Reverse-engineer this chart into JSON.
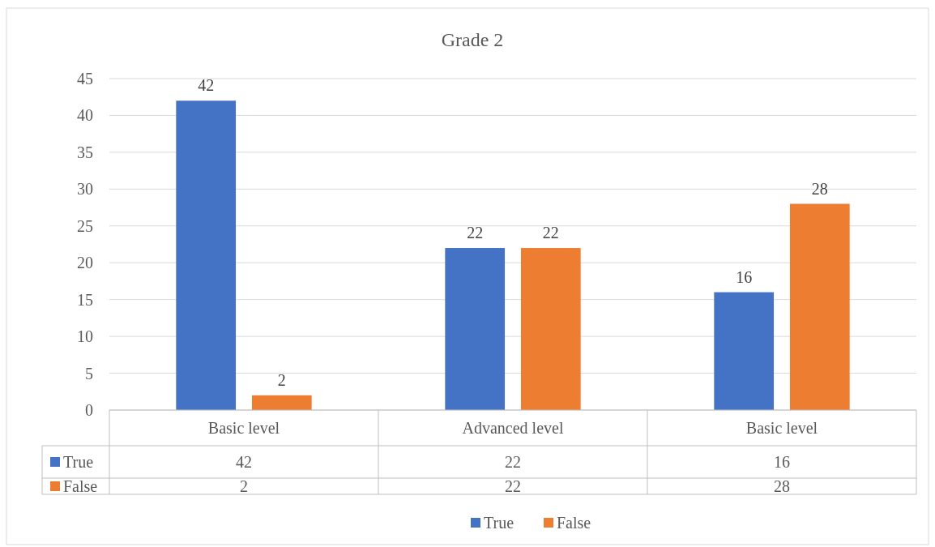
{
  "chart_data": {
    "type": "bar",
    "title": "Grade 2",
    "categories": [
      "Basic level",
      "Advanced level",
      "Basic level"
    ],
    "series": [
      {
        "name": "True",
        "color": "#4472c4",
        "values": [
          42,
          22,
          16
        ],
        "value_labels": [
          "42",
          "22",
          "16"
        ]
      },
      {
        "name": "False",
        "color": "#ed7d31",
        "values": [
          2,
          22,
          28
        ],
        "value_labels": [
          "2",
          "22",
          "28"
        ]
      }
    ],
    "ylim": [
      0,
      45
    ],
    "yticks": [
      0,
      5,
      10,
      15,
      20,
      25,
      30,
      35,
      40,
      45
    ],
    "grid": "y",
    "legend": "bottom",
    "annotations": [
      "42",
      "22",
      "16",
      "2",
      "22",
      "28"
    ]
  }
}
